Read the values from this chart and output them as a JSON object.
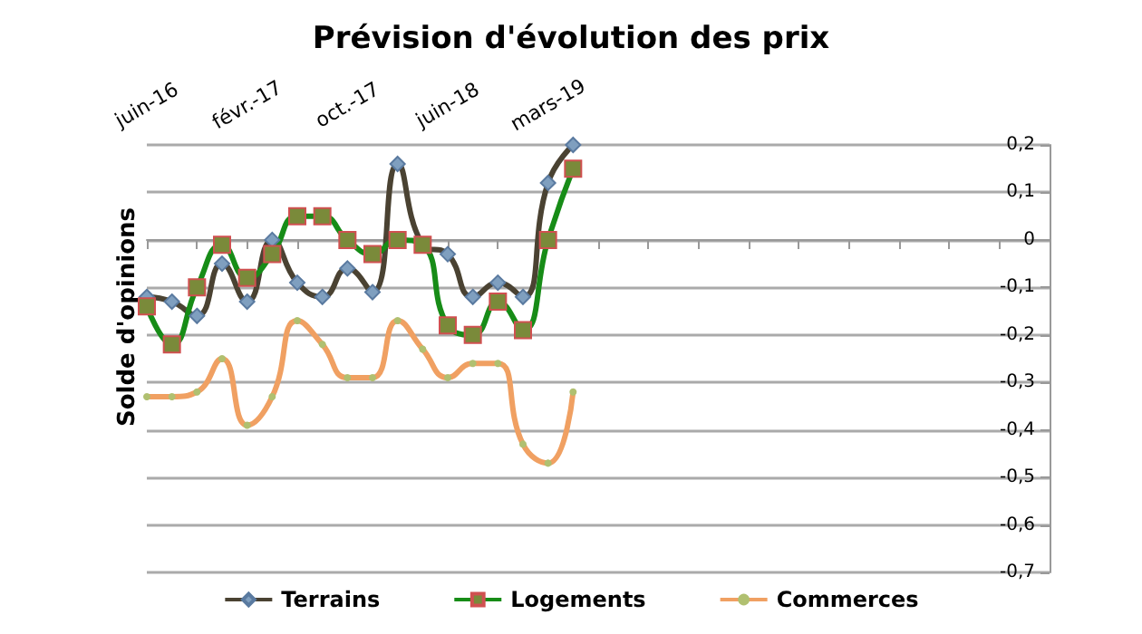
{
  "chart_data": {
    "type": "line",
    "title": "Prévision d'évolution des prix",
    "ylabel": "Solde d'opinions",
    "categories": [
      "juin-16",
      null,
      null,
      null,
      "févr.-17",
      null,
      null,
      null,
      "oct.-17",
      null,
      null,
      null,
      "juin-18",
      null,
      null,
      null,
      "mars-19",
      null,
      null,
      null,
      null,
      null,
      null,
      null,
      null,
      null,
      null,
      null,
      null,
      null,
      null,
      null,
      null,
      null,
      null,
      null,
      null
    ],
    "series": [
      {
        "name": "Terrains",
        "color": "#4a4232",
        "marker": "diamond",
        "values": [
          -0.12,
          -0.13,
          -0.16,
          -0.05,
          -0.13,
          0.0,
          -0.09,
          -0.12,
          -0.06,
          -0.11,
          0.16,
          -0.01,
          -0.03,
          -0.12,
          -0.09,
          -0.12,
          0.12,
          0.2,
          null,
          null,
          null,
          null,
          null,
          null,
          null,
          null,
          null,
          null,
          null,
          null,
          null,
          null,
          null,
          null,
          null,
          null,
          null
        ]
      },
      {
        "name": "Logements",
        "color": "#178c17",
        "marker": "square",
        "values": [
          -0.14,
          -0.22,
          -0.1,
          -0.01,
          -0.08,
          -0.03,
          0.05,
          0.05,
          0.0,
          -0.03,
          0.0,
          -0.01,
          -0.18,
          -0.2,
          -0.13,
          -0.19,
          0.0,
          0.15,
          null,
          null,
          null,
          null,
          null,
          null,
          null,
          null,
          null,
          null,
          null,
          null,
          null,
          null,
          null,
          null,
          null,
          null,
          null
        ]
      },
      {
        "name": "Commerces",
        "color": "#f0a062",
        "marker": "circle",
        "values": [
          -0.33,
          -0.33,
          -0.32,
          -0.25,
          -0.39,
          -0.33,
          -0.17,
          -0.22,
          -0.29,
          -0.29,
          -0.17,
          -0.23,
          -0.29,
          -0.26,
          -0.26,
          -0.43,
          -0.47,
          -0.32,
          null,
          null,
          null,
          null,
          null,
          null,
          null,
          null,
          null,
          null,
          null,
          null,
          null,
          null,
          null,
          null,
          null,
          null,
          null
        ]
      }
    ],
    "ylim": [
      -0.7,
      0.2
    ],
    "yticks": [
      {
        "value": 0.2,
        "label": "0,2"
      },
      {
        "value": 0.1,
        "label": "0,1"
      },
      0,
      {
        "value": -0.1,
        "label": "-0,1"
      },
      {
        "value": -0.2,
        "label": "-0,2"
      },
      {
        "value": -0.3,
        "label": "-0,3"
      },
      {
        "value": -0.4,
        "label": "-0,4"
      },
      {
        "value": -0.5,
        "label": "-0,5"
      },
      {
        "value": -0.6,
        "label": "-0,6"
      },
      {
        "value": -0.7,
        "label": "-0,7"
      }
    ],
    "grid": "y",
    "legend": "bottom",
    "line_style": "solid"
  }
}
